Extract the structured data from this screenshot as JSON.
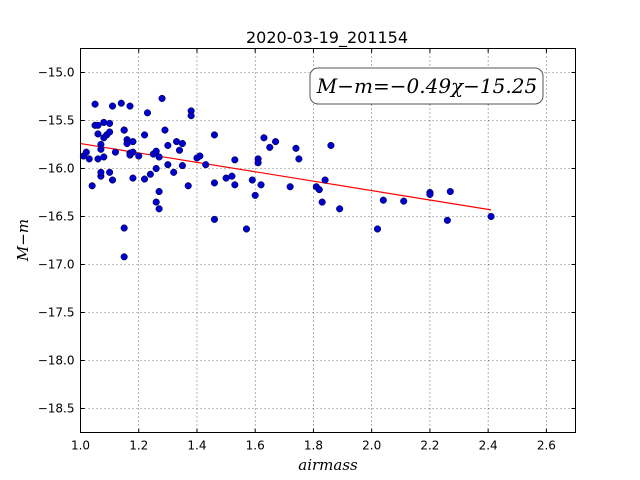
{
  "chart_data": {
    "type": "scatter",
    "title": "2020-03-19_201154",
    "xlabel": "airmass",
    "ylabel": "M−m",
    "xlim": [
      1.0,
      2.7
    ],
    "ylim": [
      -18.75,
      -14.75
    ],
    "xticks": [
      "1.0",
      "1.2",
      "1.4",
      "1.6",
      "1.8",
      "2.0",
      "2.2",
      "2.4",
      "2.6"
    ],
    "yticks": [
      "−15.0",
      "−15.5",
      "−16.0",
      "−16.5",
      "−17.0",
      "−17.5",
      "−18.0",
      "−18.5"
    ],
    "grid": true,
    "annotation": "M−m=−0.49χ−15.25",
    "fit": {
      "slope": -0.49,
      "intercept": -15.25,
      "x_range": [
        1.0,
        2.41
      ],
      "color": "#ff0000"
    },
    "point_color": "#0000cc",
    "points": [
      [
        1.01,
        -15.87
      ],
      [
        1.02,
        -15.83
      ],
      [
        1.03,
        -15.9
      ],
      [
        1.04,
        -16.18
      ],
      [
        1.05,
        -15.33
      ],
      [
        1.05,
        -15.55
      ],
      [
        1.06,
        -15.9
      ],
      [
        1.06,
        -15.64
      ],
      [
        1.06,
        -15.55
      ],
      [
        1.07,
        -15.75
      ],
      [
        1.07,
        -15.8
      ],
      [
        1.07,
        -16.08
      ],
      [
        1.07,
        -16.04
      ],
      [
        1.08,
        -15.52
      ],
      [
        1.08,
        -15.68
      ],
      [
        1.08,
        -15.88
      ],
      [
        1.09,
        -15.65
      ],
      [
        1.1,
        -15.62
      ],
      [
        1.1,
        -15.53
      ],
      [
        1.1,
        -16.04
      ],
      [
        1.11,
        -16.12
      ],
      [
        1.11,
        -15.35
      ],
      [
        1.12,
        -15.83
      ],
      [
        1.14,
        -15.32
      ],
      [
        1.15,
        -15.6
      ],
      [
        1.15,
        -15.6
      ],
      [
        1.15,
        -16.62
      ],
      [
        1.15,
        -16.92
      ],
      [
        1.16,
        -15.7
      ],
      [
        1.16,
        -15.74
      ],
      [
        1.17,
        -15.35
      ],
      [
        1.17,
        -15.84
      ],
      [
        1.17,
        -15.86
      ],
      [
        1.18,
        -15.72
      ],
      [
        1.18,
        -15.83
      ],
      [
        1.18,
        -16.1
      ],
      [
        1.2,
        -15.87
      ],
      [
        1.22,
        -16.11
      ],
      [
        1.22,
        -15.65
      ],
      [
        1.23,
        -15.42
      ],
      [
        1.24,
        -16.06
      ],
      [
        1.25,
        -15.85
      ],
      [
        1.26,
        -16.0
      ],
      [
        1.26,
        -16.35
      ],
      [
        1.26,
        -15.82
      ],
      [
        1.27,
        -15.88
      ],
      [
        1.27,
        -16.24
      ],
      [
        1.27,
        -16.42
      ],
      [
        1.28,
        -15.27
      ],
      [
        1.29,
        -15.6
      ],
      [
        1.3,
        -15.96
      ],
      [
        1.3,
        -15.76
      ],
      [
        1.32,
        -16.04
      ],
      [
        1.33,
        -15.72
      ],
      [
        1.34,
        -15.81
      ],
      [
        1.35,
        -15.74
      ],
      [
        1.35,
        -15.97
      ],
      [
        1.37,
        -16.18
      ],
      [
        1.38,
        -15.4
      ],
      [
        1.38,
        -15.45
      ],
      [
        1.4,
        -15.89
      ],
      [
        1.41,
        -15.87
      ],
      [
        1.43,
        -15.96
      ],
      [
        1.46,
        -15.65
      ],
      [
        1.46,
        -16.15
      ],
      [
        1.46,
        -16.53
      ],
      [
        1.5,
        -16.1
      ],
      [
        1.52,
        -16.08
      ],
      [
        1.53,
        -15.91
      ],
      [
        1.53,
        -16.17
      ],
      [
        1.57,
        -16.63
      ],
      [
        1.59,
        -16.12
      ],
      [
        1.6,
        -16.28
      ],
      [
        1.61,
        -15.9
      ],
      [
        1.61,
        -15.94
      ],
      [
        1.62,
        -16.17
      ],
      [
        1.63,
        -15.68
      ],
      [
        1.65,
        -15.78
      ],
      [
        1.67,
        -15.72
      ],
      [
        1.72,
        -16.19
      ],
      [
        1.74,
        -15.79
      ],
      [
        1.75,
        -15.9
      ],
      [
        1.81,
        -16.19
      ],
      [
        1.82,
        -16.22
      ],
      [
        1.83,
        -16.35
      ],
      [
        1.84,
        -16.12
      ],
      [
        1.86,
        -15.76
      ],
      [
        1.89,
        -16.42
      ],
      [
        2.02,
        -16.63
      ],
      [
        2.04,
        -16.33
      ],
      [
        2.11,
        -16.34
      ],
      [
        2.2,
        -16.25
      ],
      [
        2.2,
        -16.27
      ],
      [
        2.26,
        -16.54
      ],
      [
        2.27,
        -16.24
      ],
      [
        2.41,
        -16.5
      ]
    ]
  }
}
